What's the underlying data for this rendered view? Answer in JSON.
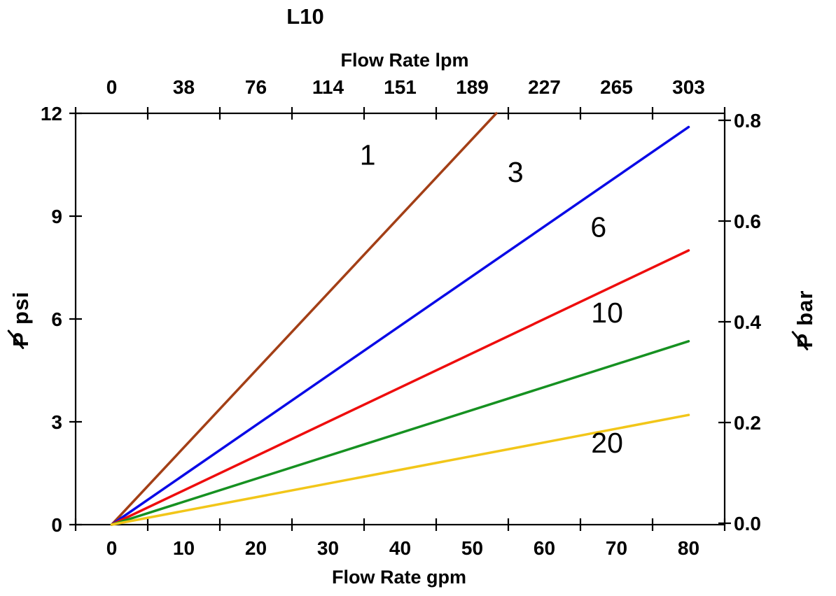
{
  "labels": {
    "p_symbol": "P",
    "left_unit": "psi",
    "right_unit": "bar"
  },
  "chart_data": {
    "type": "line",
    "title": "L10",
    "xlabel_top": "Flow Rate lpm",
    "xlabel_bottom": "Flow Rate gpm",
    "ylabel_left": "∅P psi",
    "ylabel_right": "∅P bar",
    "x_range_gpm": [
      0,
      80
    ],
    "y_range_psi": [
      0,
      12
    ],
    "y_range_bar": [
      0.0,
      0.8
    ],
    "x_ticks_gpm": [
      "0",
      "10",
      "20",
      "30",
      "40",
      "50",
      "60",
      "70",
      "80"
    ],
    "x_ticks_lpm": [
      "0",
      "38",
      "76",
      "114",
      "151",
      "189",
      "227",
      "265",
      "303"
    ],
    "y_ticks_psi": [
      "0",
      "3",
      "6",
      "9",
      "12"
    ],
    "y_ticks_bar": [
      "0.0",
      "0.2",
      "0.4",
      "0.6",
      "0.8"
    ],
    "grid": false,
    "legend": "inline-curve-labels",
    "series": [
      {
        "name": "1",
        "color": "#A33F16",
        "points_gpm_psi": [
          [
            0,
            0
          ],
          [
            80,
            18.0
          ]
        ],
        "label_at_gpm_psi": [
          35.5,
          10.5
        ]
      },
      {
        "name": "3",
        "color": "#0A0AE6",
        "points_gpm_psi": [
          [
            0,
            0
          ],
          [
            80,
            11.6
          ]
        ],
        "label_at_gpm_psi": [
          56.0,
          10.0
        ]
      },
      {
        "name": "6",
        "color": "#EE0D0D",
        "points_gpm_psi": [
          [
            0,
            0
          ],
          [
            80,
            8.0
          ]
        ],
        "label_at_gpm_psi": [
          67.5,
          8.4
        ]
      },
      {
        "name": "10",
        "color": "#169121",
        "points_gpm_psi": [
          [
            0,
            0
          ],
          [
            80,
            5.35
          ]
        ],
        "label_at_gpm_psi": [
          68.7,
          5.9
        ]
      },
      {
        "name": "20",
        "color": "#F2C619",
        "points_gpm_psi": [
          [
            0,
            0
          ],
          [
            80,
            3.2
          ]
        ],
        "label_at_gpm_psi": [
          68.7,
          2.1
        ]
      }
    ]
  }
}
